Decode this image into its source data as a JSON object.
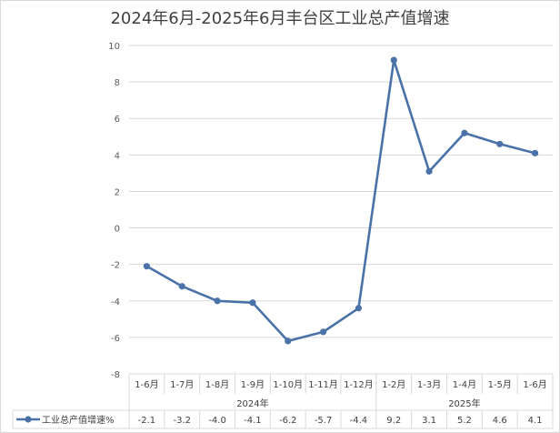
{
  "chart_data": {
    "type": "line",
    "title": "2024年6月-2025年6月丰台区工业总产值增速",
    "categories": [
      "1-6月",
      "1-7月",
      "1-8月",
      "1-9月",
      "1-10月",
      "1-11月",
      "1-12月",
      "1-2月",
      "1-3月",
      "1-4月",
      "1-5月",
      "1-6月"
    ],
    "groups": [
      {
        "label": "2024年",
        "count": 7
      },
      {
        "label": "2025年",
        "count": 5
      }
    ],
    "series": [
      {
        "name": "工业总产值增速%",
        "values": [
          -2.1,
          -3.2,
          -4.0,
          -4.1,
          -6.2,
          -5.7,
          -4.4,
          9.2,
          3.1,
          5.2,
          4.6,
          4.1
        ],
        "value_labels": [
          "-2.1",
          "-3.2",
          "-4.0",
          "-4.1",
          "-6.2",
          "-5.7",
          "-4.4",
          "9.2",
          "3.1",
          "5.2",
          "4.6",
          "4.1"
        ]
      }
    ],
    "ylim": [
      -8,
      10
    ],
    "yticks": [
      -8,
      -6,
      -4,
      -2,
      0,
      2,
      4,
      6,
      8,
      10
    ],
    "grid": true,
    "data_table": true,
    "colors": {
      "line": "#4a72a8",
      "grid": "#d9d9d9"
    }
  }
}
